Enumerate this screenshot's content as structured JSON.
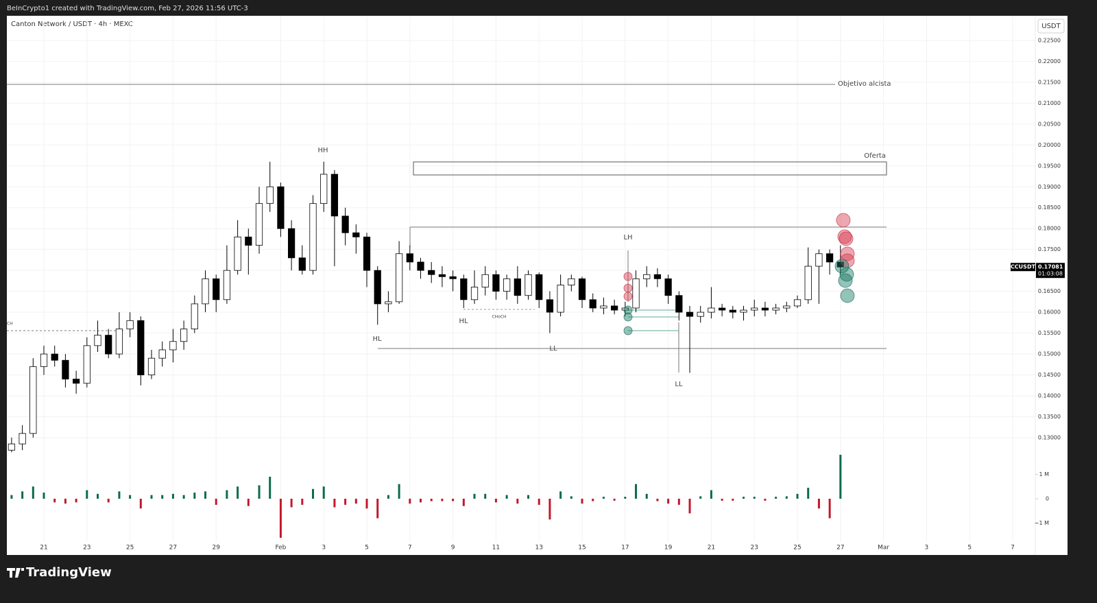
{
  "header": {
    "caption": "BeInCrypto1 created with TradingView.com, Feb 27, 2026 11:56 UTC-3",
    "symbol": "Canton Network / USDT · 4h · MEXC",
    "currency": "USDT",
    "ticker": "CCUSDT",
    "countdown": "01:03:08",
    "brand": "TradingView"
  },
  "chart_data": {
    "type": "candlestick",
    "x": [
      19.5,
      20,
      20.5,
      21,
      21.5,
      22,
      22.5,
      23,
      23.5,
      24,
      24.5,
      25,
      25.5,
      26,
      26.5,
      27,
      27.5,
      28,
      28.5,
      29,
      29.5,
      30,
      30.5,
      31,
      31.5,
      32,
      32.5,
      33,
      33.5,
      34,
      34.5,
      35,
      35.5,
      36,
      36.5,
      37,
      37.5,
      38,
      38.5,
      39,
      39.5,
      40,
      40.5,
      41,
      41.5,
      42,
      42.5,
      43,
      43.5,
      44,
      44.5,
      45,
      45.5,
      46,
      46.5,
      47,
      47.5,
      48,
      48.5,
      49,
      49.5,
      50,
      50.5,
      51,
      51.5,
      52,
      52.5,
      53,
      53.5,
      54,
      54.5,
      55,
      55.5,
      56,
      56.5,
      57,
      57.5,
      58
    ],
    "open": [
      0.127,
      0.1285,
      0.131,
      0.147,
      0.15,
      0.1485,
      0.144,
      0.143,
      0.152,
      0.1545,
      0.15,
      0.156,
      0.158,
      0.145,
      0.149,
      0.151,
      0.153,
      0.156,
      0.162,
      0.168,
      0.163,
      0.17,
      0.178,
      0.176,
      0.186,
      0.19,
      0.18,
      0.173,
      0.17,
      0.186,
      0.193,
      0.183,
      0.179,
      0.178,
      0.17,
      0.162,
      0.1625,
      0.174,
      0.172,
      0.17,
      0.169,
      0.1685,
      0.168,
      0.163,
      0.166,
      0.169,
      0.165,
      0.168,
      0.164,
      0.169,
      0.163,
      0.16,
      0.1665,
      0.168,
      0.163,
      0.161,
      0.1615,
      0.1605,
      0.161,
      0.168,
      0.169,
      0.168,
      0.164,
      0.16,
      0.159,
      0.16,
      0.161,
      0.1605,
      0.16,
      0.1605,
      0.161,
      0.1605,
      0.161,
      0.1615,
      0.163,
      0.171,
      0.174,
      0.172
    ],
    "high": [
      0.13,
      0.133,
      0.149,
      0.152,
      0.152,
      0.15,
      0.146,
      0.154,
      0.158,
      0.156,
      0.16,
      0.16,
      0.159,
      0.151,
      0.153,
      0.156,
      0.158,
      0.164,
      0.17,
      0.169,
      0.176,
      0.182,
      0.18,
      0.19,
      0.196,
      0.191,
      0.182,
      0.176,
      0.188,
      0.196,
      0.194,
      0.185,
      0.181,
      0.179,
      0.171,
      0.165,
      0.177,
      0.176,
      0.173,
      0.172,
      0.171,
      0.17,
      0.169,
      0.17,
      0.171,
      0.17,
      0.169,
      0.171,
      0.17,
      0.1695,
      0.165,
      0.169,
      0.169,
      0.1685,
      0.1645,
      0.1635,
      0.163,
      0.1625,
      0.17,
      0.171,
      0.1705,
      0.169,
      0.165,
      0.1615,
      0.1615,
      0.166,
      0.162,
      0.1615,
      0.1615,
      0.163,
      0.1625,
      0.162,
      0.1625,
      0.164,
      0.1755,
      0.175,
      0.175,
      0.176
    ],
    "low": [
      0.1265,
      0.127,
      0.13,
      0.145,
      0.147,
      0.142,
      0.1405,
      0.142,
      0.1505,
      0.149,
      0.149,
      0.154,
      0.1425,
      0.144,
      0.147,
      0.148,
      0.151,
      0.155,
      0.16,
      0.16,
      0.162,
      0.169,
      0.169,
      0.174,
      0.184,
      0.178,
      0.17,
      0.169,
      0.169,
      0.184,
      0.171,
      0.176,
      0.174,
      0.166,
      0.157,
      0.16,
      0.162,
      0.17,
      0.168,
      0.167,
      0.166,
      0.165,
      0.161,
      0.162,
      0.164,
      0.163,
      0.163,
      0.162,
      0.163,
      0.161,
      0.155,
      0.159,
      0.165,
      0.161,
      0.16,
      0.1595,
      0.1595,
      0.159,
      0.16,
      0.166,
      0.166,
      0.162,
      0.158,
      0.1455,
      0.1575,
      0.1585,
      0.159,
      0.1585,
      0.158,
      0.159,
      0.159,
      0.1595,
      0.16,
      0.161,
      0.162,
      0.162,
      0.169,
      0.169
    ],
    "close": [
      0.1285,
      0.131,
      0.147,
      0.15,
      0.1485,
      0.144,
      0.143,
      0.152,
      0.1545,
      0.15,
      0.156,
      0.158,
      0.145,
      0.149,
      0.151,
      0.153,
      0.156,
      0.162,
      0.168,
      0.163,
      0.17,
      0.178,
      0.176,
      0.186,
      0.19,
      0.18,
      0.173,
      0.17,
      0.186,
      0.193,
      0.183,
      0.179,
      0.178,
      0.17,
      0.162,
      0.1625,
      0.174,
      0.172,
      0.17,
      0.169,
      0.1685,
      0.168,
      0.163,
      0.166,
      0.169,
      0.165,
      0.168,
      0.164,
      0.169,
      0.163,
      0.16,
      0.1665,
      0.168,
      0.163,
      0.161,
      0.1615,
      0.1605,
      0.161,
      0.168,
      0.169,
      0.168,
      0.164,
      0.16,
      0.159,
      0.16,
      0.161,
      0.1605,
      0.16,
      0.1605,
      0.161,
      0.1605,
      0.161,
      0.1615,
      0.163,
      0.171,
      0.174,
      0.172,
      0.17081
    ],
    "volume": [
      150000,
      300000,
      500000,
      250000,
      -150000,
      -200000,
      -150000,
      350000,
      200000,
      -150000,
      300000,
      150000,
      -400000,
      150000,
      150000,
      200000,
      150000,
      250000,
      300000,
      -250000,
      350000,
      500000,
      -300000,
      550000,
      900000,
      -1600000,
      -350000,
      -250000,
      400000,
      500000,
      -350000,
      -250000,
      -200000,
      -400000,
      -800000,
      150000,
      600000,
      -200000,
      -150000,
      -100000,
      -100000,
      -100000,
      -300000,
      200000,
      200000,
      -150000,
      150000,
      -200000,
      150000,
      -250000,
      -850000,
      300000,
      100000,
      -200000,
      -100000,
      80000,
      -80000,
      80000,
      600000,
      200000,
      -100000,
      -200000,
      -250000,
      -600000,
      100000,
      350000,
      -80000,
      -80000,
      80000,
      80000,
      -80000,
      80000,
      100000,
      200000,
      450000,
      -400000,
      -800000,
      1800000
    ],
    "up_color": "#ffffff",
    "down_color": "#000000",
    "wick_color": "#000000",
    "volume_up_color": "#0b6b4b",
    "volume_down_color": "#c2182b",
    "xlim": [
      19.28,
      67.05
    ],
    "ylim": [
      0.1231,
      0.2309
    ],
    "y2lim": [
      -1770000,
      1320000
    ],
    "xticks": [
      21,
      23,
      25,
      27,
      29,
      {
        "value": 32,
        "label": "Feb"
      },
      {
        "value": 34,
        "label": "3"
      },
      {
        "value": 36,
        "label": "5"
      },
      {
        "value": 38,
        "label": "7"
      },
      {
        "value": 40,
        "label": "9"
      },
      {
        "value": 42,
        "label": "11"
      },
      {
        "value": 44,
        "label": "13"
      },
      {
        "value": 46,
        "label": "15"
      },
      {
        "value": 48,
        "label": "17"
      },
      {
        "value": 50,
        "label": "19"
      },
      {
        "value": 52,
        "label": "21"
      },
      {
        "value": 54,
        "label": "23"
      },
      {
        "value": 56,
        "label": "25"
      },
      {
        "value": 58,
        "label": "27"
      },
      {
        "value": 60,
        "label": "Mar"
      },
      {
        "value": 62,
        "label": "3"
      },
      {
        "value": 64,
        "label": "5"
      },
      {
        "value": 66,
        "label": "7"
      }
    ],
    "yticks": [
      {
        "value": 0.13,
        "label": "0.13000"
      },
      {
        "value": 0.135,
        "label": "0.13500"
      },
      {
        "value": 0.14,
        "label": "0.14000"
      },
      {
        "value": 0.145,
        "label": "0.14500"
      },
      {
        "value": 0.15,
        "label": "0.15000"
      },
      {
        "value": 0.155,
        "label": "0.15500"
      },
      {
        "value": 0.16,
        "label": "0.16000"
      },
      {
        "value": 0.165,
        "label": "0.16500"
      },
      {
        "value": 0.17,
        "label": "0.17000"
      },
      {
        "value": 0.175,
        "label": "0.17500"
      },
      {
        "value": 0.18,
        "label": "0.18000"
      },
      {
        "value": 0.185,
        "label": "0.18500"
      },
      {
        "value": 0.19,
        "label": "0.19000"
      },
      {
        "value": 0.195,
        "label": "0.19500"
      },
      {
        "value": 0.2,
        "label": "0.20000"
      },
      {
        "value": 0.205,
        "label": "0.20500"
      },
      {
        "value": 0.21,
        "label": "0.21000"
      },
      {
        "value": 0.215,
        "label": "0.21500"
      },
      {
        "value": 0.22,
        "label": "0.22000"
      },
      {
        "value": 0.225,
        "label": "0.22500"
      }
    ],
    "y2ticks": [
      {
        "value": 1000000,
        "label": "1 M"
      },
      0,
      {
        "value": -1000000,
        "label": "−1 M"
      }
    ],
    "grid": true,
    "annotations": [
      "HH",
      "HL",
      "HL",
      "CHoCH",
      "LH",
      "LL",
      "LL",
      "Oferta",
      "Objetivo alcista",
      "CH"
    ]
  }
}
